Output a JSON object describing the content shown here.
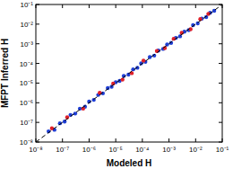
{
  "chart_data": {
    "type": "scatter",
    "x_label": "Modeled H",
    "y_label": "MFPT Inferred H",
    "log": true,
    "xlim": [
      1e-08,
      0.1
    ],
    "ylim": [
      1e-08,
      0.1
    ],
    "xticks": [
      {
        "value": 1e-08,
        "label": "10⁻⁸"
      },
      {
        "value": 1e-07,
        "label": "10⁻⁷"
      },
      {
        "value": 1e-06,
        "label": "10⁻⁶"
      },
      {
        "value": 1e-05,
        "label": "10⁻⁵"
      },
      {
        "value": 0.0001,
        "label": "10⁻⁴"
      },
      {
        "value": 0.001,
        "label": "10⁻³"
      },
      {
        "value": 0.01,
        "label": "10⁻²"
      },
      {
        "value": 0.1,
        "label": "10⁻¹"
      }
    ],
    "yticks": [
      {
        "value": 1e-08,
        "label": "10⁻⁸"
      },
      {
        "value": 1e-07,
        "label": "10⁻⁷"
      },
      {
        "value": 1e-06,
        "label": "10⁻⁶"
      },
      {
        "value": 1e-05,
        "label": "10⁻⁵"
      },
      {
        "value": 0.0001,
        "label": "10⁻⁴"
      },
      {
        "value": 0.001,
        "label": "10⁻³"
      },
      {
        "value": 0.01,
        "label": "10⁻²"
      },
      {
        "value": 0.1,
        "label": "10⁻¹"
      }
    ],
    "series": [
      {
        "color": "#1f3fd6",
        "marker": "circle",
        "x": [
          3e-08,
          5e-08,
          8e-08,
          1.2e-07,
          2e-07,
          3e-07,
          4.5e-07,
          7e-07,
          1e-06,
          1.5e-06,
          2.2e-06,
          3.3e-06,
          5e-06,
          7e-06,
          1e-05,
          1.4e-05,
          2e-05,
          3e-05,
          4.5e-05,
          6.5e-05,
          9e-05,
          0.00013,
          0.00019,
          0.00028,
          0.0004,
          0.0006,
          0.00085,
          0.0012,
          0.0018,
          0.0026,
          0.0038,
          0.0055,
          0.008,
          0.012,
          0.017,
          0.025,
          0.035,
          0.05
        ],
        "values": [
          3.5e-08,
          4.2e-08,
          9e-08,
          1.1e-07,
          2.4e-07,
          2.8e-07,
          5e-07,
          6.2e-07,
          1.15e-06,
          1.4e-06,
          2.5e-06,
          3e-06,
          5.6e-06,
          6.5e-06,
          1.1e-05,
          1.3e-05,
          2.3e-05,
          2.7e-05,
          5e-05,
          6e-05,
          0.0001,
          0.00012,
          0.00021,
          0.00025,
          0.00045,
          0.00055,
          0.00092,
          0.0011,
          0.002,
          0.0024,
          0.0041,
          0.005,
          0.0088,
          0.011,
          0.019,
          0.023,
          0.038,
          0.048
        ]
      },
      {
        "color": "#e0202a",
        "marker": "circle",
        "x": [
          4e-08,
          1.5e-07,
          6e-07,
          2.5e-06,
          8e-06,
          1.8e-05,
          4e-05,
          0.00011,
          0.00035,
          0.0007,
          0.0015,
          0.003,
          0.0065,
          0.015,
          0.03
        ],
        "values": [
          5e-08,
          1.8e-07,
          5e-07,
          3.2e-06,
          9.5e-06,
          1.5e-05,
          3.2e-05,
          0.00014,
          0.00043,
          0.0006,
          0.0018,
          0.0036,
          0.0055,
          0.018,
          0.033
        ]
      },
      {
        "type": "line",
        "line_style": "dashed",
        "color": "#000000",
        "x": [
          1e-08,
          0.1
        ],
        "values": [
          1e-08,
          0.1
        ]
      }
    ]
  }
}
